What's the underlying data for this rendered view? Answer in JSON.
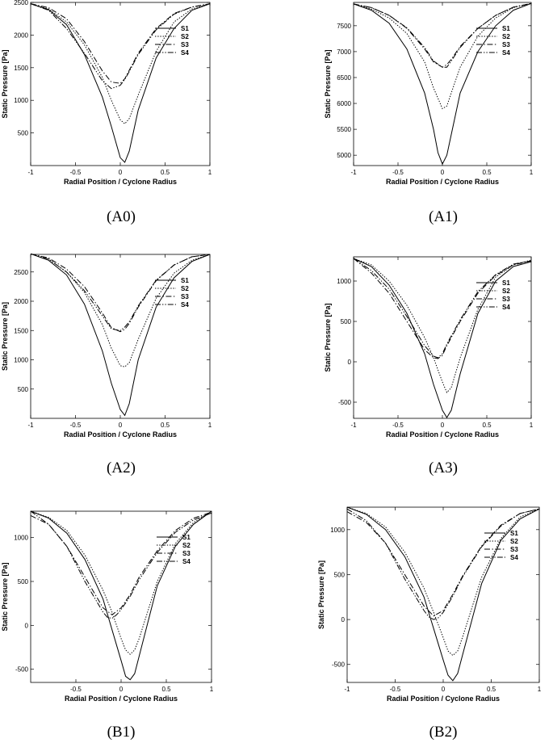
{
  "chart_data": [
    {
      "caption": "(A0)",
      "type": "line",
      "xlabel": "Radial Position / Cyclone Radius",
      "ylabel": "Static Pressure [Pa]",
      "xlim": [
        -1,
        1
      ],
      "ylim": [
        0,
        2500
      ],
      "xticks": [
        -1,
        -0.5,
        0,
        0.5,
        1
      ],
      "xtick_labels": [
        "-1",
        "-0.5",
        "0",
        "0.5",
        "1"
      ],
      "yticks": [
        500,
        1000,
        1500,
        2000,
        2500
      ],
      "ytick_labels": [
        "500",
        "1000",
        "1500",
        "2000",
        "2500"
      ],
      "legend_position": "top-right",
      "grid": false,
      "series": [
        {
          "name": "S1",
          "style": "solid",
          "x": [
            -1,
            -0.8,
            -0.6,
            -0.4,
            -0.2,
            -0.1,
            0,
            0.05,
            0.1,
            0.2,
            0.4,
            0.6,
            0.8,
            1
          ],
          "y": [
            2480,
            2390,
            2160,
            1700,
            1050,
            600,
            120,
            50,
            220,
            850,
            1650,
            2100,
            2380,
            2480
          ]
        },
        {
          "name": "S2",
          "style": "dotted",
          "x": [
            -1,
            -0.8,
            -0.6,
            -0.4,
            -0.2,
            -0.1,
            0,
            0.05,
            0.1,
            0.2,
            0.4,
            0.6,
            0.8,
            1
          ],
          "y": [
            2480,
            2400,
            2200,
            1850,
            1350,
            1000,
            700,
            640,
            720,
            1080,
            1750,
            2200,
            2400,
            2480
          ]
        },
        {
          "name": "S3",
          "style": "dashdot",
          "x": [
            -1,
            -0.8,
            -0.6,
            -0.4,
            -0.2,
            -0.1,
            0,
            0.05,
            0.1,
            0.2,
            0.4,
            0.6,
            0.8,
            1
          ],
          "y": [
            2480,
            2420,
            2250,
            1900,
            1450,
            1280,
            1260,
            1330,
            1460,
            1720,
            2100,
            2330,
            2430,
            2480
          ]
        },
        {
          "name": "S4",
          "style": "dashdotdot",
          "x": [
            -1,
            -0.8,
            -0.6,
            -0.4,
            -0.2,
            -0.1,
            0,
            0.05,
            0.1,
            0.2,
            0.4,
            0.6,
            0.8,
            1
          ],
          "y": [
            2480,
            2380,
            2100,
            1720,
            1300,
            1180,
            1230,
            1320,
            1440,
            1700,
            2080,
            2320,
            2430,
            2480
          ]
        }
      ]
    },
    {
      "caption": "(A1)",
      "type": "line",
      "xlabel": "Radial Position / Cyclone Radius",
      "ylabel": "Static Pressure [Pa]",
      "xlim": [
        -1,
        1
      ],
      "ylim": [
        4800,
        7950
      ],
      "xticks": [
        -1,
        -0.5,
        0,
        0.5,
        1
      ],
      "xtick_labels": [
        "-1",
        "-0.5",
        "0",
        "0.5",
        "1"
      ],
      "yticks": [
        5000,
        5500,
        6000,
        6500,
        7000,
        7500
      ],
      "ytick_labels": [
        "5000",
        "5500",
        "6000",
        "6500",
        "7000",
        "7500"
      ],
      "legend_position": "top-right",
      "grid": false,
      "series": [
        {
          "name": "S1",
          "style": "solid",
          "x": [
            -1,
            -0.8,
            -0.6,
            -0.4,
            -0.2,
            -0.1,
            -0.05,
            0,
            0.05,
            0.1,
            0.2,
            0.4,
            0.6,
            0.8,
            1
          ],
          "y": [
            7920,
            7800,
            7550,
            7050,
            6200,
            5500,
            5050,
            4830,
            5000,
            5400,
            6200,
            7000,
            7500,
            7800,
            7930
          ]
        },
        {
          "name": "S2",
          "style": "dotted",
          "x": [
            -1,
            -0.8,
            -0.6,
            -0.4,
            -0.2,
            -0.1,
            0,
            0.05,
            0.1,
            0.2,
            0.4,
            0.6,
            0.8,
            1
          ],
          "y": [
            7920,
            7820,
            7650,
            7350,
            6800,
            6300,
            5900,
            5950,
            6200,
            6700,
            7300,
            7650,
            7850,
            7930
          ]
        },
        {
          "name": "S3",
          "style": "dashdot",
          "x": [
            -1,
            -0.8,
            -0.6,
            -0.4,
            -0.2,
            -0.1,
            0,
            0.05,
            0.1,
            0.2,
            0.4,
            0.6,
            0.8,
            1
          ],
          "y": [
            7920,
            7850,
            7700,
            7450,
            7050,
            6800,
            6700,
            6750,
            6850,
            7100,
            7450,
            7700,
            7860,
            7930
          ]
        },
        {
          "name": "S4",
          "style": "dashdotdot",
          "x": [
            -1,
            -0.8,
            -0.6,
            -0.4,
            -0.2,
            -0.1,
            0,
            0.05,
            0.1,
            0.2,
            0.4,
            0.6,
            0.8,
            1
          ],
          "y": [
            7920,
            7850,
            7700,
            7460,
            7080,
            6820,
            6700,
            6700,
            6820,
            7080,
            7450,
            7700,
            7860,
            7930
          ]
        }
      ]
    },
    {
      "caption": "(A2)",
      "type": "line",
      "xlabel": "Radial Position / Cyclone Radius",
      "ylabel": "Static Pressure [Pa]",
      "xlim": [
        -1,
        1
      ],
      "ylim": [
        0,
        2800
      ],
      "xticks": [
        -1,
        -0.5,
        0,
        0.5,
        1
      ],
      "xtick_labels": [
        "-1",
        "-0.5",
        "0",
        "0.5",
        "1"
      ],
      "yticks": [
        500,
        1000,
        1500,
        2000,
        2500
      ],
      "ytick_labels": [
        "500",
        "1000",
        "1500",
        "2000",
        "2500"
      ],
      "legend_position": "top-right",
      "grid": false,
      "series": [
        {
          "name": "S1",
          "style": "solid",
          "x": [
            -1,
            -0.8,
            -0.6,
            -0.4,
            -0.2,
            -0.1,
            0,
            0.05,
            0.1,
            0.2,
            0.4,
            0.6,
            0.8,
            1
          ],
          "y": [
            2810,
            2700,
            2450,
            1950,
            1150,
            600,
            150,
            50,
            250,
            1000,
            1900,
            2400,
            2680,
            2800
          ]
        },
        {
          "name": "S2",
          "style": "dotted",
          "x": [
            -1,
            -0.8,
            -0.6,
            -0.4,
            -0.2,
            -0.1,
            0,
            0.05,
            0.1,
            0.2,
            0.4,
            0.6,
            0.8,
            1
          ],
          "y": [
            2810,
            2720,
            2500,
            2150,
            1600,
            1200,
            900,
            880,
            950,
            1350,
            2050,
            2480,
            2700,
            2800
          ]
        },
        {
          "name": "S3",
          "style": "dashdot",
          "x": [
            -1,
            -0.8,
            -0.6,
            -0.4,
            -0.2,
            -0.1,
            0,
            0.05,
            0.1,
            0.2,
            0.4,
            0.6,
            0.8,
            1
          ],
          "y": [
            2810,
            2740,
            2550,
            2250,
            1800,
            1550,
            1480,
            1520,
            1620,
            1900,
            2350,
            2620,
            2760,
            2800
          ]
        },
        {
          "name": "S4",
          "style": "dashdotdot",
          "x": [
            -1,
            -0.8,
            -0.6,
            -0.4,
            -0.2,
            -0.1,
            0,
            0.05,
            0.1,
            0.2,
            0.4,
            0.6,
            0.8,
            1
          ],
          "y": [
            2810,
            2720,
            2500,
            2180,
            1750,
            1530,
            1500,
            1560,
            1650,
            1920,
            2360,
            2620,
            2760,
            2800
          ]
        }
      ]
    },
    {
      "caption": "(A3)",
      "type": "line",
      "xlabel": "Radial Position / Cyclone Radius",
      "ylabel": "Static Pressure [Pa]",
      "xlim": [
        -1,
        1
      ],
      "ylim": [
        -700,
        1300
      ],
      "xticks": [
        -1,
        -0.5,
        0,
        0.5,
        1
      ],
      "xtick_labels": [
        "-1",
        "-0.5",
        "0",
        "0.5",
        "1"
      ],
      "yticks": [
        -500,
        0,
        500,
        1000
      ],
      "ytick_labels": [
        "-500",
        "0",
        "500",
        "1000"
      ],
      "legend_position": "top-right",
      "grid": false,
      "series": [
        {
          "name": "S1",
          "style": "solid",
          "x": [
            -1,
            -0.8,
            -0.6,
            -0.4,
            -0.2,
            -0.1,
            0,
            0.05,
            0.1,
            0.2,
            0.4,
            0.6,
            0.8,
            1
          ],
          "y": [
            1280,
            1180,
            950,
            600,
            100,
            -280,
            -600,
            -690,
            -600,
            -150,
            600,
            1000,
            1180,
            1240
          ]
        },
        {
          "name": "S2",
          "style": "dotted",
          "x": [
            -1,
            -0.8,
            -0.6,
            -0.4,
            -0.2,
            -0.1,
            0,
            0.05,
            0.1,
            0.2,
            0.4,
            0.6,
            0.8,
            1
          ],
          "y": [
            1280,
            1200,
            1000,
            700,
            300,
            50,
            -250,
            -380,
            -320,
            50,
            650,
            1050,
            1200,
            1260
          ]
        },
        {
          "name": "S3",
          "style": "dashdot",
          "x": [
            -1,
            -0.8,
            -0.6,
            -0.4,
            -0.2,
            -0.1,
            -0.05,
            0,
            0.05,
            0.1,
            0.2,
            0.4,
            0.6,
            0.8,
            1
          ],
          "y": [
            1280,
            1100,
            850,
            500,
            150,
            50,
            40,
            80,
            200,
            300,
            500,
            850,
            1070,
            1200,
            1250
          ]
        },
        {
          "name": "S4",
          "style": "dashdotdot",
          "x": [
            -1,
            -0.8,
            -0.6,
            -0.4,
            -0.2,
            -0.1,
            -0.05,
            0,
            0.05,
            0.1,
            0.2,
            0.4,
            0.6,
            0.8,
            1
          ],
          "y": [
            1280,
            1130,
            900,
            560,
            200,
            70,
            50,
            100,
            220,
            320,
            520,
            870,
            1080,
            1210,
            1250
          ]
        }
      ]
    },
    {
      "caption": "(B1)",
      "type": "line",
      "xlabel": "Radial Position / Cyclone Radius",
      "ylabel": "Static Pressure [Pa]",
      "xlim": [
        -1,
        1
      ],
      "ylim": [
        -650,
        1300
      ],
      "xticks": [
        -0.5,
        0,
        0.5,
        1
      ],
      "xtick_labels": [
        "-0.5",
        "0",
        "0.5",
        "1"
      ],
      "yticks": [
        -500,
        0,
        500,
        1000
      ],
      "ytick_labels": [
        "-500",
        "0",
        "500",
        "1000"
      ],
      "legend_position": "top-right",
      "grid": false,
      "series": [
        {
          "name": "S1",
          "style": "solid",
          "x": [
            -1,
            -0.8,
            -0.6,
            -0.4,
            -0.2,
            -0.1,
            0,
            0.05,
            0.1,
            0.15,
            0.2,
            0.4,
            0.6,
            0.8,
            1
          ],
          "y": [
            1300,
            1220,
            1050,
            750,
            300,
            -50,
            -400,
            -580,
            -620,
            -550,
            -350,
            450,
            900,
            1150,
            1300
          ]
        },
        {
          "name": "S2",
          "style": "dotted",
          "x": [
            -1,
            -0.8,
            -0.6,
            -0.4,
            -0.2,
            -0.1,
            0,
            0.05,
            0.1,
            0.15,
            0.2,
            0.4,
            0.6,
            0.8,
            1
          ],
          "y": [
            1300,
            1230,
            1080,
            800,
            400,
            150,
            -150,
            -280,
            -330,
            -280,
            -150,
            500,
            930,
            1170,
            1300
          ]
        },
        {
          "name": "S3",
          "style": "dashdot",
          "x": [
            -1,
            -0.8,
            -0.6,
            -0.4,
            -0.2,
            -0.1,
            0,
            0.1,
            0.2,
            0.4,
            0.6,
            0.8,
            1
          ],
          "y": [
            1250,
            1150,
            900,
            550,
            200,
            120,
            200,
            350,
            550,
            850,
            1080,
            1220,
            1290
          ]
        },
        {
          "name": "S4",
          "style": "dashdotdot",
          "x": [
            -1,
            -0.8,
            -0.6,
            -0.4,
            -0.2,
            -0.15,
            -0.1,
            -0.05,
            0,
            0.1,
            0.2,
            0.4,
            0.6,
            0.8,
            1
          ],
          "y": [
            1300,
            1150,
            900,
            500,
            150,
            90,
            80,
            120,
            180,
            330,
            520,
            830,
            1060,
            1200,
            1280
          ]
        }
      ]
    },
    {
      "caption": "(B2)",
      "type": "line",
      "xlabel": "Radial Position / Cyclone Radius",
      "ylabel": "Static Pressure [Pa]",
      "xlim": [
        -1,
        1
      ],
      "ylim": [
        -700,
        1250
      ],
      "xticks": [
        -1,
        -0.5,
        0,
        0.5,
        1
      ],
      "xtick_labels": [
        "-1",
        "-0.5",
        "0",
        "0.5",
        "1"
      ],
      "yticks": [
        -500,
        0,
        500,
        1000
      ],
      "ytick_labels": [
        "-500",
        "0",
        "500",
        "1000"
      ],
      "legend_position": "top-right",
      "grid": false,
      "series": [
        {
          "name": "S1",
          "style": "solid",
          "x": [
            -1,
            -0.8,
            -0.6,
            -0.4,
            -0.2,
            -0.1,
            0,
            0.05,
            0.1,
            0.15,
            0.2,
            0.4,
            0.6,
            0.8,
            1
          ],
          "y": [
            1250,
            1170,
            1000,
            700,
            250,
            -100,
            -450,
            -620,
            -680,
            -600,
            -400,
            400,
            880,
            1120,
            1230
          ]
        },
        {
          "name": "S2",
          "style": "dotted",
          "x": [
            -1,
            -0.8,
            -0.6,
            -0.4,
            -0.2,
            -0.1,
            0,
            0.05,
            0.1,
            0.15,
            0.2,
            0.4,
            0.6,
            0.8,
            1
          ],
          "y": [
            1250,
            1180,
            1030,
            750,
            350,
            80,
            -200,
            -350,
            -400,
            -350,
            -200,
            470,
            900,
            1140,
            1230
          ]
        },
        {
          "name": "S3",
          "style": "dashdot",
          "x": [
            -1,
            -0.8,
            -0.6,
            -0.4,
            -0.2,
            -0.1,
            0,
            0.1,
            0.2,
            0.4,
            0.6,
            0.8,
            1
          ],
          "y": [
            1200,
            1080,
            850,
            500,
            150,
            40,
            100,
            280,
            480,
            820,
            1050,
            1180,
            1230
          ]
        },
        {
          "name": "S4",
          "style": "dashdotdot",
          "x": [
            -1,
            -0.8,
            -0.6,
            -0.4,
            -0.2,
            -0.15,
            -0.1,
            -0.05,
            0,
            0.1,
            0.2,
            0.4,
            0.6,
            0.8,
            1
          ],
          "y": [
            1230,
            1100,
            850,
            450,
            100,
            30,
            0,
            20,
            80,
            260,
            470,
            810,
            1040,
            1180,
            1230
          ]
        }
      ]
    }
  ]
}
